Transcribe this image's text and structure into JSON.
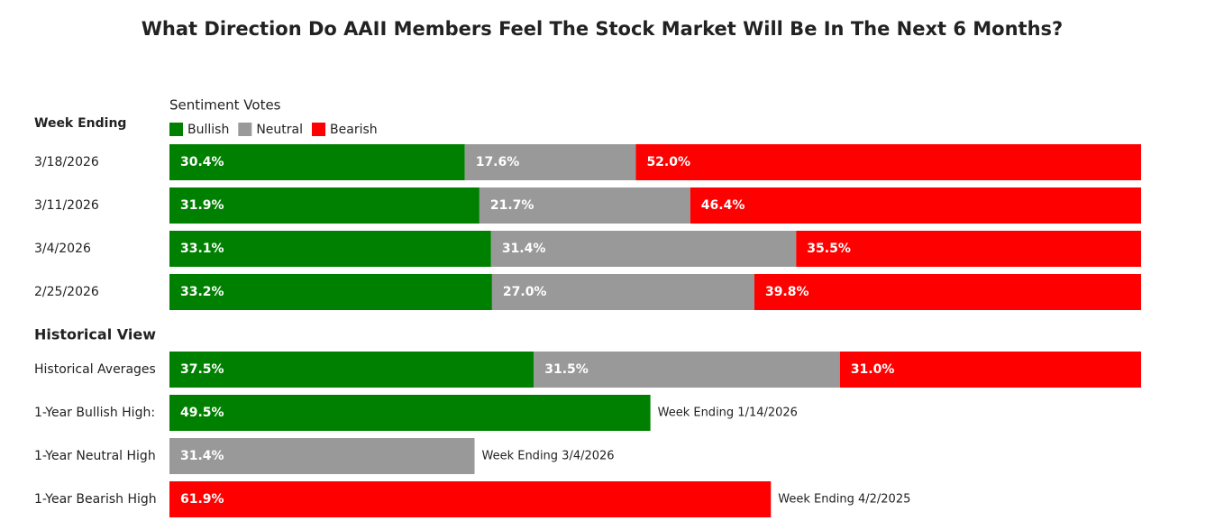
{
  "chart_data": {
    "type": "bar",
    "title": "What Direction Do AAII Members Feel The Stock Market Will Be In The Next 6 Months?",
    "legend_title": "Sentiment Votes",
    "xlim": [
      0,
      100
    ],
    "series": [
      {
        "name": "Bullish",
        "color": "#008000"
      },
      {
        "name": "Neutral",
        "color": "#999999"
      },
      {
        "name": "Bearish",
        "color": "#ff0000"
      }
    ],
    "sections": [
      {
        "title": "Week Ending",
        "categories": [
          "3/18/2026",
          "3/11/2026",
          "3/4/2026",
          "2/25/2026"
        ],
        "values": [
          [
            30.4,
            17.6,
            52.0
          ],
          [
            31.9,
            21.7,
            46.4
          ],
          [
            33.1,
            31.4,
            35.5
          ],
          [
            33.2,
            27.0,
            39.8
          ]
        ],
        "value_labels": [
          [
            "30.4%",
            "17.6%",
            "52.0%"
          ],
          [
            "31.9%",
            "21.7%",
            "46.4%"
          ],
          [
            "33.1%",
            "31.4%",
            "35.5%"
          ],
          [
            "33.2%",
            "27.0%",
            "39.8%"
          ]
        ],
        "annotations": [
          null,
          null,
          null,
          null
        ]
      },
      {
        "title": "Historical View",
        "categories": [
          "Historical Averages",
          "1-Year Bullish High:",
          "1-Year Neutral High",
          "1-Year Bearish High"
        ],
        "values": [
          [
            37.5,
            31.5,
            31.0
          ],
          [
            49.5,
            null,
            null
          ],
          [
            null,
            31.4,
            null
          ],
          [
            null,
            null,
            61.9
          ]
        ],
        "value_labels": [
          [
            "37.5%",
            "31.5%",
            "31.0%"
          ],
          [
            "49.5%",
            null,
            null
          ],
          [
            null,
            "31.4%",
            null
          ],
          [
            null,
            null,
            "61.9%"
          ]
        ],
        "annotations": [
          null,
          "Week Ending 1/14/2026",
          "Week Ending 3/4/2026",
          "Week Ending 4/2/2025"
        ]
      }
    ]
  }
}
